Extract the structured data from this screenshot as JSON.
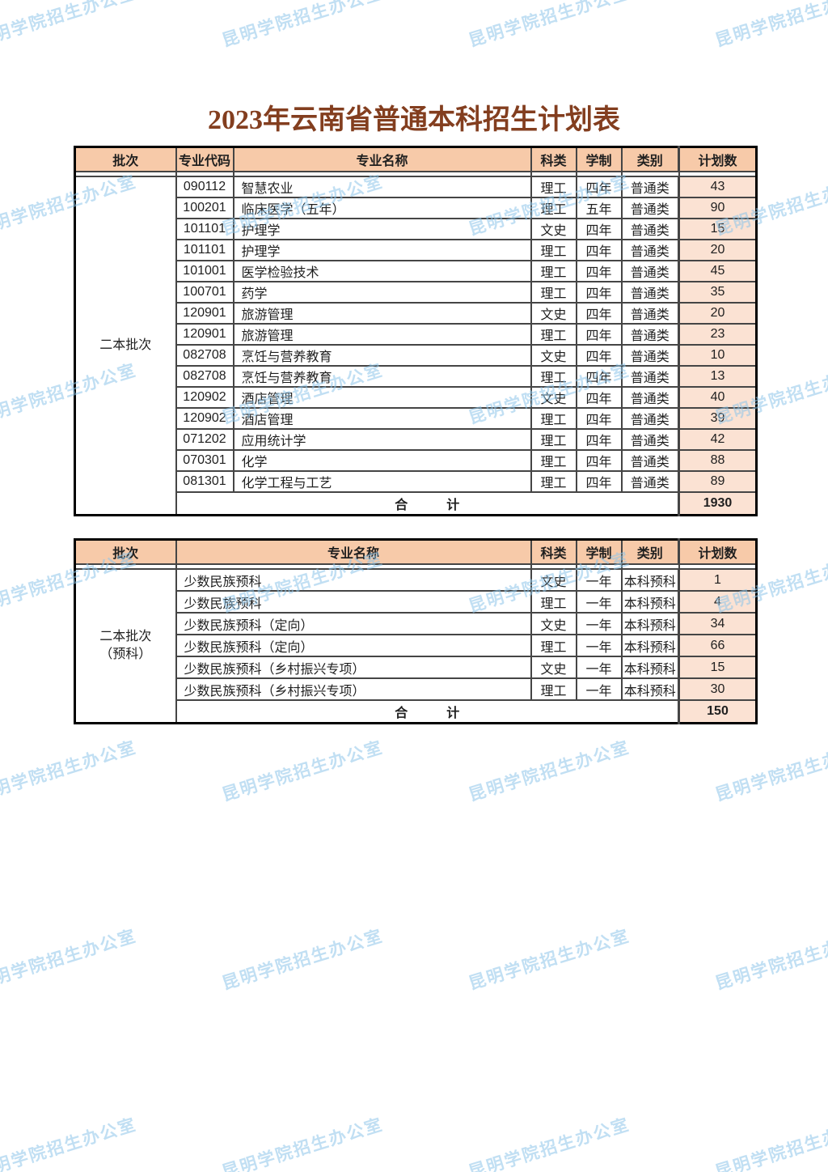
{
  "page": {
    "title": "2023年云南省普通本科招生计划表",
    "watermark": {
      "text": "昆明学院招生办公室"
    },
    "colors": {
      "header_bg": "#F7CAA9",
      "plan_bg": "#FBE2D3",
      "title_color": "#833E1F",
      "watermark_color": "#8FC6EA"
    }
  },
  "table1": {
    "batch_lines": [
      "二本批次"
    ],
    "headers": [
      "批次",
      "专业代码",
      "专业名称",
      "科类",
      "学制",
      "类别",
      "计划数"
    ],
    "rows": [
      [
        "090112",
        "智慧农业",
        "理工",
        "四年",
        "普通类",
        "43"
      ],
      [
        "100201",
        "临床医学（五年）",
        "理工",
        "五年",
        "普通类",
        "90"
      ],
      [
        "101101",
        "护理学",
        "文史",
        "四年",
        "普通类",
        "15"
      ],
      [
        "101101",
        "护理学",
        "理工",
        "四年",
        "普通类",
        "20"
      ],
      [
        "101001",
        "医学检验技术",
        "理工",
        "四年",
        "普通类",
        "45"
      ],
      [
        "100701",
        "药学",
        "理工",
        "四年",
        "普通类",
        "35"
      ],
      [
        "120901",
        "旅游管理",
        "文史",
        "四年",
        "普通类",
        "20"
      ],
      [
        "120901",
        "旅游管理",
        "理工",
        "四年",
        "普通类",
        "23"
      ],
      [
        "082708",
        "烹饪与营养教育",
        "文史",
        "四年",
        "普通类",
        "10"
      ],
      [
        "082708",
        "烹饪与营养教育",
        "理工",
        "四年",
        "普通类",
        "13"
      ],
      [
        "120902",
        "酒店管理",
        "文史",
        "四年",
        "普通类",
        "40"
      ],
      [
        "120902",
        "酒店管理",
        "理工",
        "四年",
        "普通类",
        "39"
      ],
      [
        "071202",
        "应用统计学",
        "理工",
        "四年",
        "普通类",
        "42"
      ],
      [
        "070301",
        "化学",
        "理工",
        "四年",
        "普通类",
        "88"
      ],
      [
        "081301",
        "化学工程与工艺",
        "理工",
        "四年",
        "普通类",
        "89"
      ]
    ],
    "total_label": "合　　　计",
    "total_value": "1930"
  },
  "table2": {
    "batch_lines": [
      "二本批次",
      "（预科）"
    ],
    "headers": [
      "批次",
      "专业名称",
      "科类",
      "学制",
      "类别",
      "计划数"
    ],
    "rows": [
      [
        "少数民族预科",
        "文史",
        "一年",
        "本科预科",
        "1"
      ],
      [
        "少数民族预科",
        "理工",
        "一年",
        "本科预科",
        "4"
      ],
      [
        "少数民族预科（定向）",
        "文史",
        "一年",
        "本科预科",
        "34"
      ],
      [
        "少数民族预科（定向）",
        "理工",
        "一年",
        "本科预科",
        "66"
      ],
      [
        "少数民族预科（乡村振兴专项）",
        "文史",
        "一年",
        "本科预科",
        "15"
      ],
      [
        "少数民族预科（乡村振兴专项）",
        "理工",
        "一年",
        "本科预科",
        "30"
      ]
    ],
    "total_label": "合　　　计",
    "total_value": "150"
  }
}
